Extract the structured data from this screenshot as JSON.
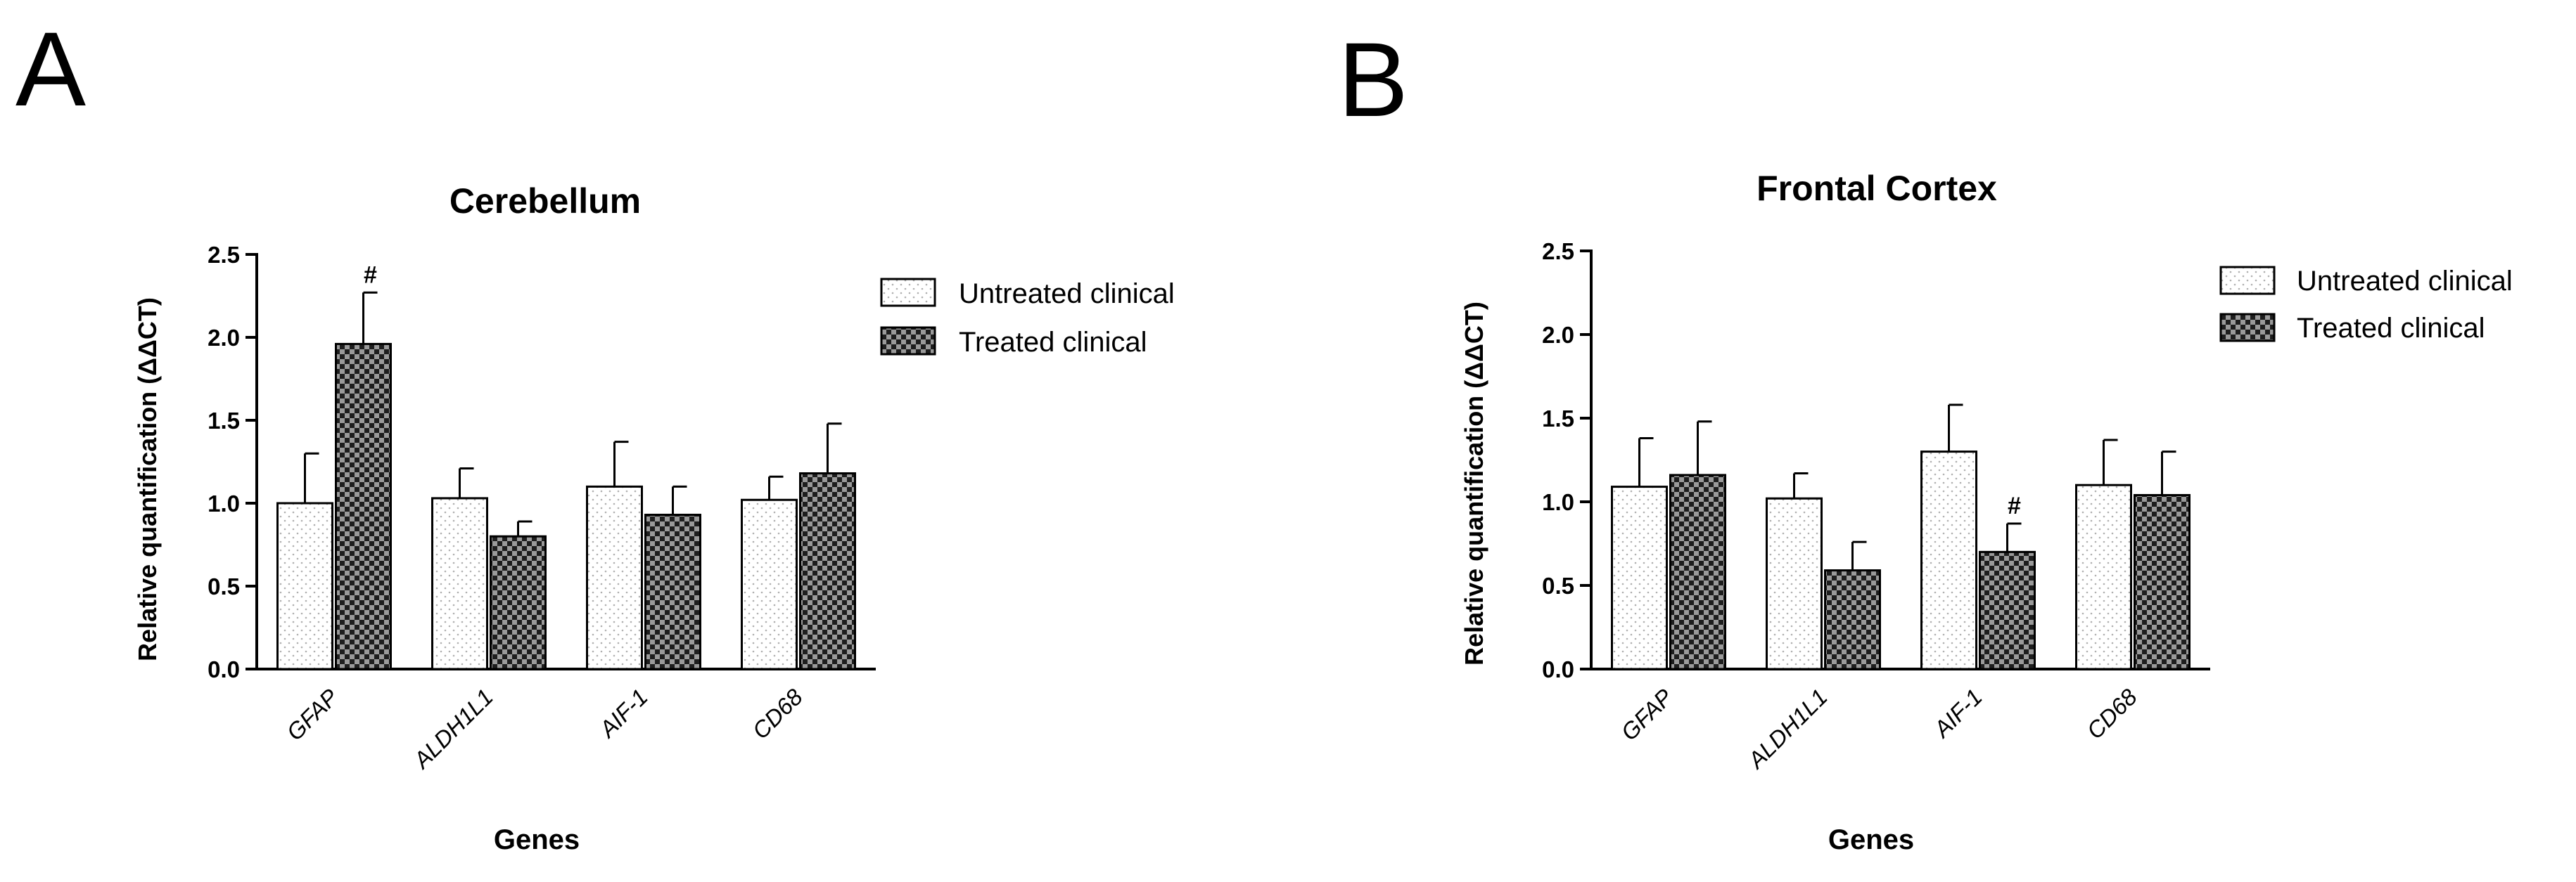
{
  "chart_data": [
    {
      "type": "bar",
      "panel_label": "A",
      "title": "Cerebellum",
      "xlabel": "Genes",
      "ylabel": "Relative quantification (ΔΔCT)",
      "categories": [
        "GFAP",
        "ALDH1L1",
        "AIF-1",
        "CD68"
      ],
      "ylim": [
        0,
        2.5
      ],
      "yticks": [
        "0.0",
        "0.5",
        "1.0",
        "1.5",
        "2.0",
        "2.5"
      ],
      "legend_position": "right",
      "series": [
        {
          "name": "Untreated clinical",
          "pattern": "dotted",
          "values": [
            1.0,
            1.03,
            1.1,
            1.02
          ],
          "errors": [
            0.3,
            0.18,
            0.27,
            0.14
          ]
        },
        {
          "name": "Treated clinical",
          "pattern": "checkered",
          "values": [
            1.96,
            0.8,
            0.93,
            1.18
          ],
          "errors": [
            0.31,
            0.09,
            0.17,
            0.3
          ]
        }
      ],
      "annotations": [
        {
          "text": "#",
          "series": 1,
          "category": "GFAP"
        }
      ]
    },
    {
      "type": "bar",
      "panel_label": "B",
      "title": "Frontal Cortex",
      "xlabel": "Genes",
      "ylabel": "Relative quantification (ΔΔCT)",
      "categories": [
        "GFAP",
        "ALDH1L1",
        "AIF-1",
        "CD68"
      ],
      "ylim": [
        0,
        2.5
      ],
      "yticks": [
        "0.0",
        "0.5",
        "1.0",
        "1.5",
        "2.0",
        "2.5"
      ],
      "legend_position": "right",
      "series": [
        {
          "name": "Untreated clinical",
          "pattern": "dotted",
          "values": [
            1.09,
            1.02,
            1.3,
            1.1
          ],
          "errors": [
            0.29,
            0.15,
            0.28,
            0.27
          ]
        },
        {
          "name": "Treated clinical",
          "pattern": "checkered",
          "values": [
            1.16,
            0.59,
            0.7,
            1.04
          ],
          "errors": [
            0.32,
            0.17,
            0.17,
            0.26
          ]
        }
      ],
      "annotations": [
        {
          "text": "#",
          "series": 1,
          "category": "AIF-1"
        }
      ]
    }
  ]
}
